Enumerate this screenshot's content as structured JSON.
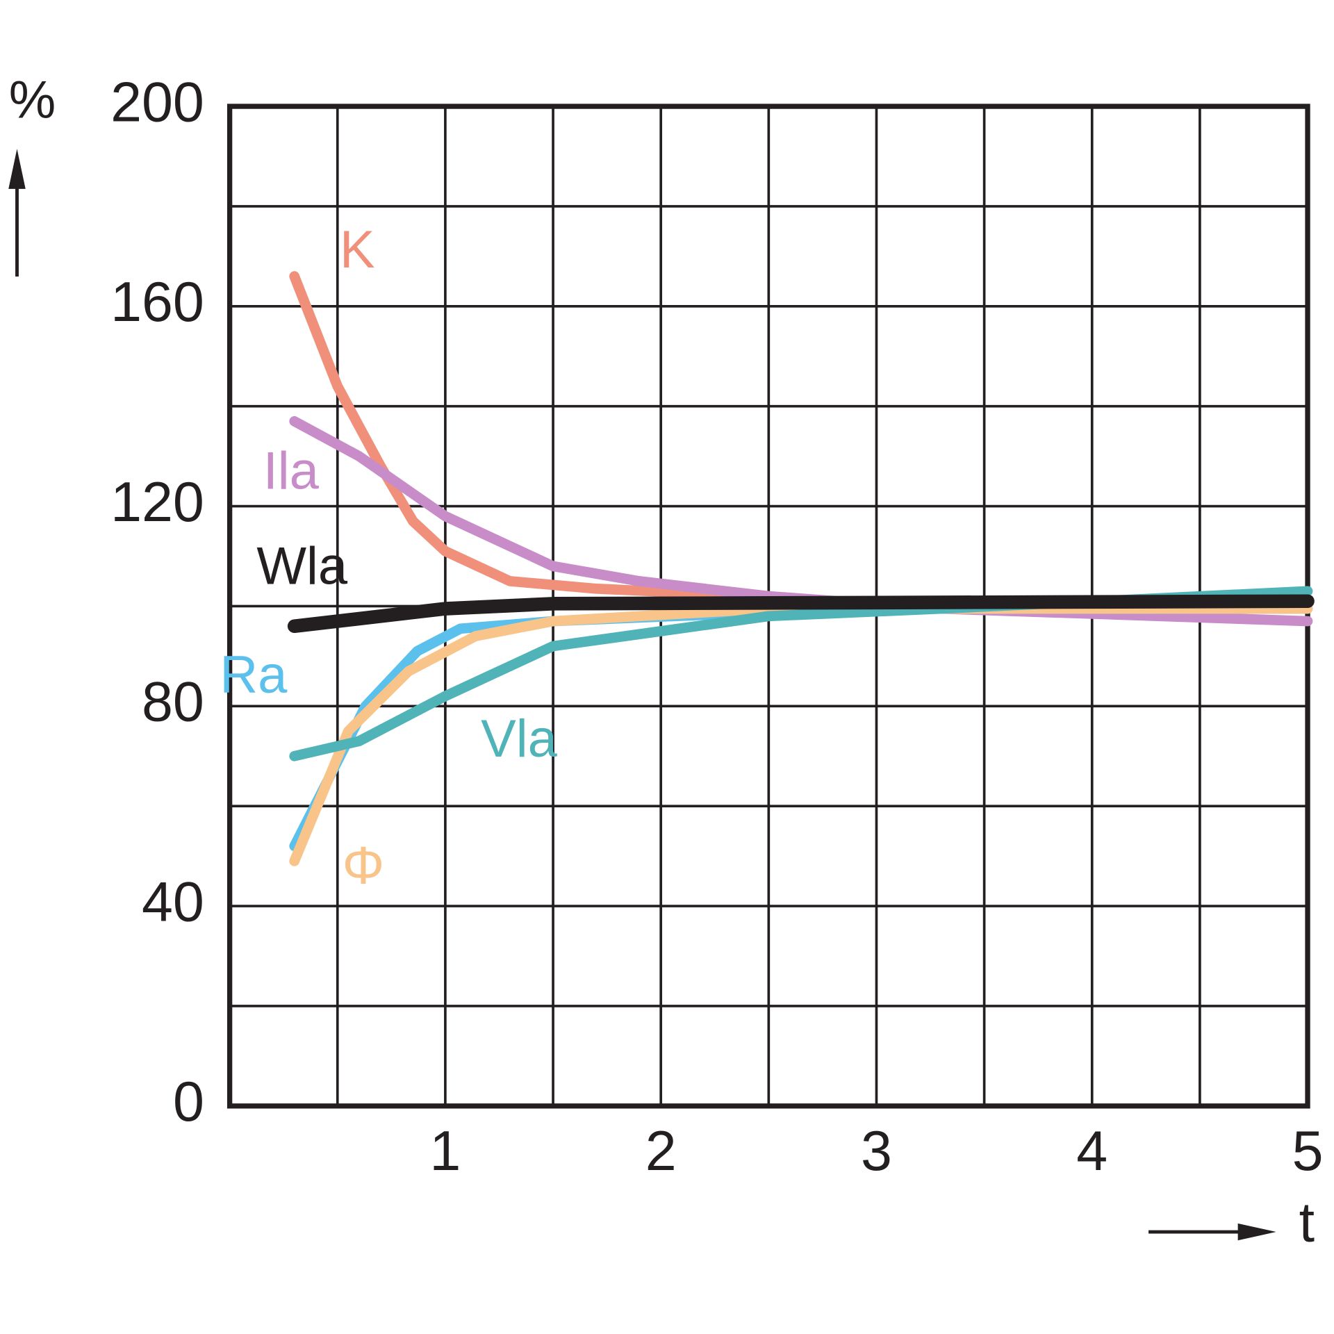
{
  "chart_data": {
    "type": "line",
    "y_label": "%",
    "x_label": "t",
    "xlim": [
      0,
      5
    ],
    "ylim": [
      0,
      200
    ],
    "xticks": [
      1,
      2,
      3,
      4,
      5
    ],
    "yticks": [
      0,
      40,
      80,
      120,
      160,
      200
    ],
    "xgrid": [
      0.5,
      1,
      1.5,
      2,
      2.5,
      3,
      3.5,
      4,
      4.5
    ],
    "ygrid": [
      20,
      40,
      60,
      80,
      100,
      120,
      140,
      160,
      180
    ],
    "grid": true,
    "series": [
      {
        "name": "K",
        "color": "#f0907a",
        "x": [
          0.3,
          0.5,
          0.7,
          0.85,
          1,
          1.3,
          1.7,
          2.2,
          2.5
        ],
        "values": [
          166,
          144,
          128,
          117,
          111,
          105,
          103.5,
          102.5,
          102
        ]
      },
      {
        "name": "Ila",
        "color": "#c88cc8",
        "x": [
          0.3,
          0.6,
          1,
          1.5,
          1.9,
          2.5,
          3.3,
          5
        ],
        "values": [
          137,
          130,
          118,
          108,
          105,
          102,
          99.5,
          97
        ]
      },
      {
        "name": "Ra",
        "color": "#5bc0eb",
        "x": [
          0.3,
          0.63,
          0.87,
          1.07,
          1.5,
          2.9,
          5
        ],
        "values": [
          52,
          80,
          91,
          95.5,
          97,
          99.5,
          99.5
        ]
      },
      {
        "name": "Φ",
        "color": "#f9c48a",
        "x": [
          0.3,
          0.55,
          0.83,
          1.14,
          1.5,
          2.5,
          5
        ],
        "values": [
          49,
          75,
          87,
          94,
          97,
          99.5,
          99.5
        ]
      },
      {
        "name": "Vla",
        "color": "#4fb3b8",
        "x": [
          0.3,
          0.6,
          1,
          1.5,
          2,
          2.5,
          3.3,
          5
        ],
        "values": [
          70,
          73,
          82,
          92,
          95,
          98,
          99.5,
          103
        ]
      },
      {
        "name": "Wla",
        "color": "#231f20",
        "x": [
          0.3,
          1,
          1.5,
          5
        ],
        "values": [
          96,
          99.5,
          100.5,
          101
        ]
      }
    ]
  }
}
